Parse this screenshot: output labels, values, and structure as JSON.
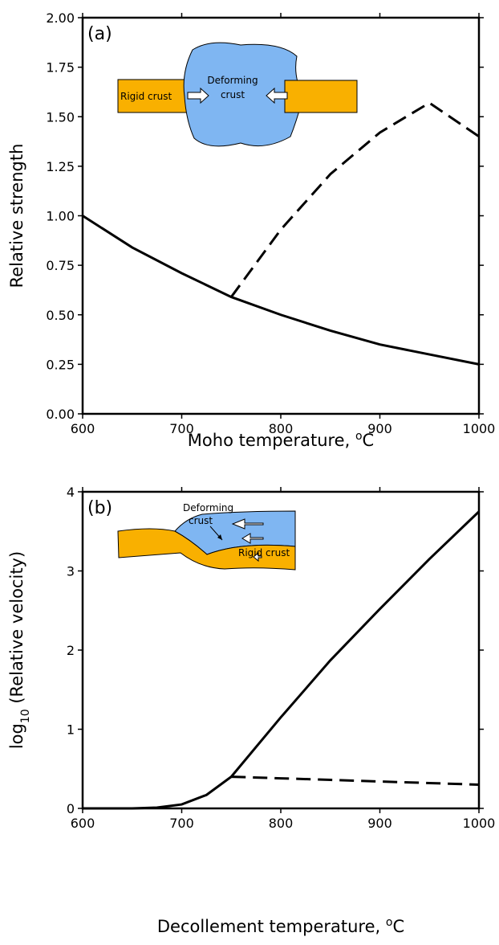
{
  "chart_data": [
    {
      "type": "line",
      "panel_label": "(a)",
      "xlabel": [
        "Moho temperature, ",
        "o",
        "C"
      ],
      "ylabel": "Relative strength",
      "x": [
        600,
        650,
        700,
        750,
        800,
        850,
        900,
        950,
        1000
      ],
      "series": [
        {
          "color": "#000000",
          "dashed": false,
          "values": [
            1.0,
            0.84,
            0.71,
            0.59,
            0.5,
            0.42,
            0.35,
            0.3,
            0.25
          ]
        },
        {
          "color": "#000000",
          "dashed": true,
          "values": [
            null,
            null,
            null,
            0.59,
            0.93,
            1.21,
            1.42,
            1.57,
            1.4
          ]
        }
      ],
      "xlim": [
        600,
        1000
      ],
      "xticks": [
        600,
        700,
        800,
        900,
        1000
      ],
      "ylim": [
        0,
        2
      ],
      "yticks": [
        {
          "value": 0,
          "label": "0.00"
        },
        0.25,
        {
          "value": 0.5,
          "label": "0.50"
        },
        0.75,
        {
          "value": 1,
          "label": "1.00"
        },
        1.25,
        {
          "value": 1.5,
          "label": "1.50"
        },
        1.75,
        {
          "value": 2,
          "label": "2.00"
        }
      ],
      "inset_labels": [
        "Rigid crust",
        "Deforming",
        "crust"
      ]
    },
    {
      "type": "line",
      "panel_label": "(b)",
      "xlabel": [
        "Decollement temperature, ",
        "o",
        "C"
      ],
      "ylabel": [
        "log",
        "10",
        " (Relative velocity)"
      ],
      "x": [
        600,
        650,
        675,
        700,
        725,
        750,
        800,
        850,
        900,
        950,
        1000
      ],
      "series": [
        {
          "color": "#000000",
          "dashed": false,
          "values": [
            0,
            0,
            0.01,
            0.05,
            0.17,
            0.4,
            1.15,
            1.87,
            2.52,
            3.15,
            3.75
          ]
        },
        {
          "color": "#000000",
          "dashed": true,
          "values": [
            null,
            null,
            null,
            null,
            null,
            0.4,
            0.38,
            0.36,
            0.34,
            0.32,
            0.3
          ]
        }
      ],
      "xlim": [
        600,
        1000
      ],
      "xticks": [
        600,
        700,
        800,
        900,
        1000
      ],
      "ylim": [
        0,
        4
      ],
      "yticks": [
        0,
        1,
        2,
        3,
        4
      ],
      "inset_labels": [
        "Deforming",
        "crust",
        "Rigid crust"
      ]
    }
  ]
}
